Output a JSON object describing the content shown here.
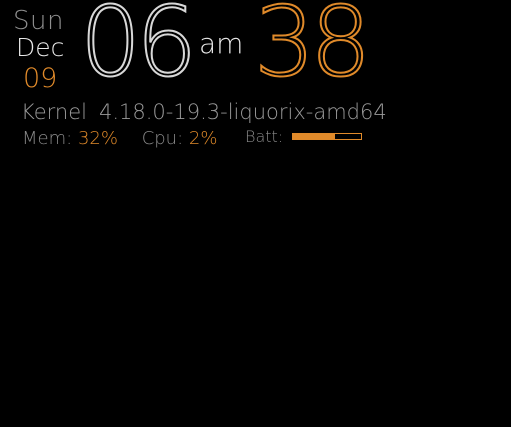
{
  "clock": {
    "day": "Sun",
    "month": "Dec",
    "date": "09",
    "hour": "06",
    "ampm": "am",
    "minute": "38"
  },
  "system": {
    "kernel_label": "Kernel",
    "kernel_version": "4.18.0-19.3-liquorix-amd64",
    "mem_label": "Mem:",
    "mem_value": "32%",
    "cpu_label": "Cpu:",
    "cpu_value": "2%",
    "batt_label": "Batt:",
    "batt_level": 0.62
  },
  "colors": {
    "background": "#000000",
    "accent": "#e08a2a",
    "primary_text": "#e8e8e8",
    "secondary_text": "#8f8f8f"
  }
}
